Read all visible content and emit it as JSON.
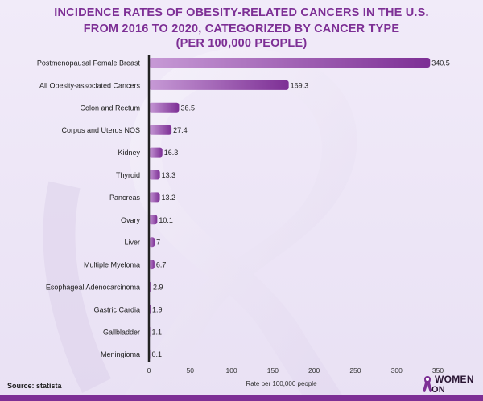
{
  "title_lines": [
    "INCIDENCE RATES OF OBESITY-RELATED CANCERS IN THE U.S.",
    "FROM 2016 TO 2020, CATEGORIZED BY CANCER TYPE",
    "(PER 100,000 PEOPLE)"
  ],
  "source": "Source: statista",
  "logo": {
    "line1": "WOMEN",
    "line2": "ON GUARD"
  },
  "colors": {
    "title": "#7d2f95",
    "bar_start": "#c79ad6",
    "bar_end": "#7d2f95",
    "axis": "#222222"
  },
  "chart_data": {
    "type": "bar",
    "orientation": "horizontal",
    "categories": [
      "Postmenopausal Female Breast",
      "All Obesity-associated Cancers",
      "Colon and Rectum",
      "Corpus and Uterus NOS",
      "Kidney",
      "Thyroid",
      "Pancreas",
      "Ovary",
      "Liver",
      "Multiple Myeloma",
      "Esophageal Adenocarcinoma",
      "Gastric Cardia",
      "Gallbladder",
      "Meningioma"
    ],
    "values": [
      340.5,
      169.3,
      36.5,
      27.4,
      16.3,
      13.3,
      13.2,
      10.1,
      7,
      6.7,
      2.9,
      1.9,
      1.1,
      0.1
    ],
    "value_labels": [
      "340.5",
      "169.3",
      "36.5",
      "27.4",
      "16.3",
      "13.3",
      "13.2",
      "10.1",
      "7",
      "6.7",
      "2.9",
      "1.9",
      "1.1",
      "0.1"
    ],
    "xlabel": "Rate per 100,000 people",
    "xlim": [
      0,
      350
    ],
    "xticks": [
      0,
      50,
      100,
      150,
      200,
      250,
      300,
      350
    ],
    "grid": false,
    "legend": "none"
  }
}
